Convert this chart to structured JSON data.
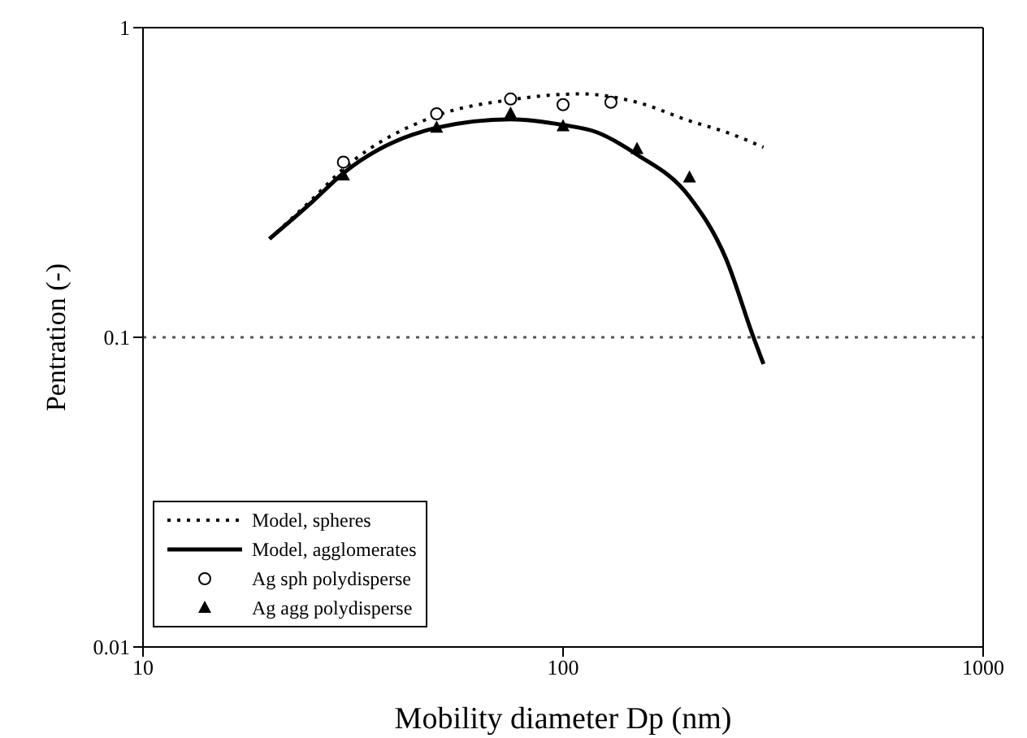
{
  "chart_data": {
    "type": "line",
    "xlabel": "Mobility diameter Dp (nm)",
    "ylabel": "Pentration (-)",
    "log": "xy",
    "xlim": [
      10,
      1000
    ],
    "xticks": [
      10,
      100,
      1000
    ],
    "ylim": [
      0.01,
      1
    ],
    "yticks": [
      0.01,
      0.1,
      1
    ],
    "grid": false,
    "legend": "bottom left",
    "ref_lines": [
      {
        "axis": "y",
        "value": 0.1,
        "line_style": "dotted",
        "color": "#555555"
      }
    ],
    "series": [
      {
        "name": "Model, spheres",
        "line_style": "dotted",
        "marker": "none",
        "color": "#000000",
        "x": [
          20,
          25,
          30,
          50,
          75,
          110,
          150,
          200,
          244,
          300
        ],
        "values": [
          0.208,
          0.275,
          0.35,
          0.52,
          0.585,
          0.611,
          0.574,
          0.5,
          0.46,
          0.411
        ]
      },
      {
        "name": "Model, agglomerates",
        "line_style": "solid",
        "marker": "none",
        "color": "#000000",
        "x": [
          20,
          25,
          30,
          50,
          75,
          100,
          120,
          150,
          200,
          244,
          284,
          300
        ],
        "values": [
          0.208,
          0.27,
          0.339,
          0.475,
          0.506,
          0.485,
          0.46,
          0.389,
          0.284,
          0.18,
          0.1,
          0.082
        ]
      },
      {
        "name": "Ag sph polydisperse",
        "type": "scatter",
        "marker": "circle",
        "color": "#000000",
        "x": [
          30,
          50,
          75,
          100,
          130
        ],
        "values": [
          0.368,
          0.527,
          0.588,
          0.564,
          0.574
        ]
      },
      {
        "name": "Ag agg polydisperse",
        "type": "scatter",
        "marker": "triangle",
        "color": "#000000",
        "x": [
          30,
          50,
          75,
          100,
          150,
          200
        ],
        "values": [
          0.333,
          0.475,
          0.527,
          0.48,
          0.405,
          0.328
        ]
      }
    ]
  }
}
